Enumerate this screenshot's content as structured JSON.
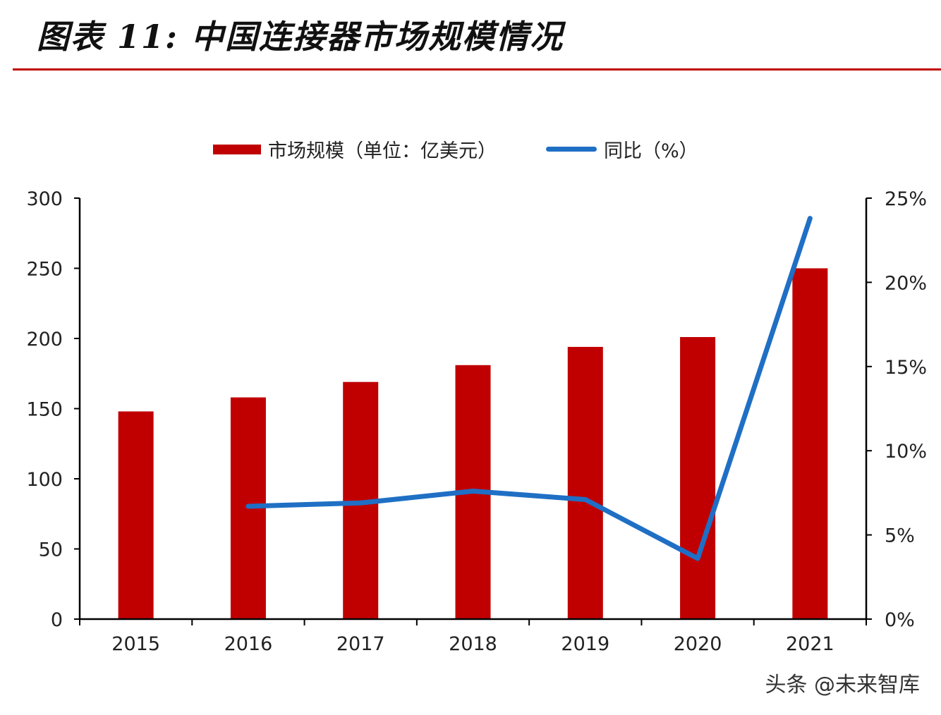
{
  "title": "图表 11:  中国连接器市场规模情况",
  "watermark": "头条 @未来智库",
  "chart_data": {
    "type": "bar",
    "categories": [
      "2015",
      "2016",
      "2017",
      "2018",
      "2019",
      "2020",
      "2021"
    ],
    "series": [
      {
        "name": "市场规模（单位：亿美元）",
        "type": "bar",
        "axis": "left",
        "color": "#c00000",
        "values": [
          148,
          158,
          169,
          181,
          194,
          201,
          250
        ]
      },
      {
        "name": "同比（%）",
        "type": "line",
        "axis": "right",
        "color": "#1f6fc5",
        "values": [
          null,
          6.7,
          6.9,
          7.6,
          7.1,
          3.6,
          23.8
        ]
      }
    ],
    "y_left": {
      "ylim": [
        0,
        300
      ],
      "ticks": [
        "0",
        "50",
        "100",
        "150",
        "200",
        "250",
        "300"
      ]
    },
    "y_right": {
      "ylim": [
        0,
        25
      ],
      "ticks": [
        "0%",
        "5%",
        "10%",
        "15%",
        "20%",
        "25%"
      ]
    },
    "legend_position": "top",
    "grid": false
  }
}
